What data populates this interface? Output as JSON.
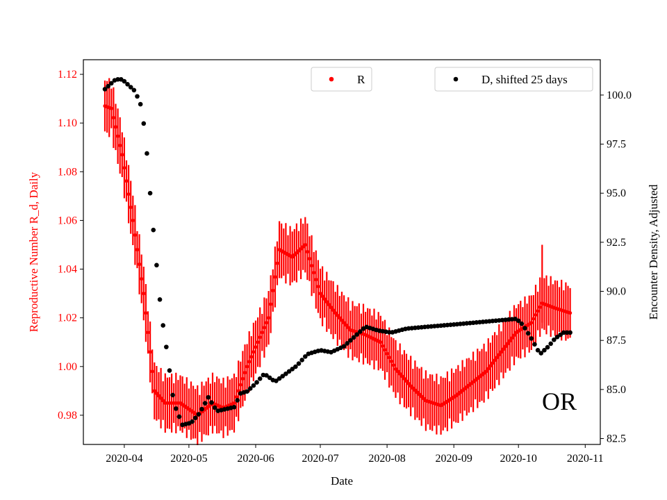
{
  "chart_data": {
    "type": "scatter",
    "state_label": "OR",
    "xlabel": "Date",
    "x_ticks": [
      "2020-04",
      "2020-05",
      "2020-06",
      "2020-07",
      "2020-08",
      "2020-09",
      "2020-10",
      "2020-11"
    ],
    "left_axis": {
      "label": "Reproductive Number R_d, Daily",
      "color": "#ff0000",
      "ylim": [
        0.968,
        1.126
      ],
      "ticks": [
        0.98,
        1.0,
        1.02,
        1.04,
        1.06,
        1.08,
        1.1,
        1.12
      ],
      "tick_labels": [
        "0.98",
        "1.00",
        "1.02",
        "1.04",
        "1.06",
        "1.08",
        "1.10",
        "1.12"
      ]
    },
    "right_axis": {
      "label": "Encounter Density, Adjusted",
      "color": "#000000",
      "ylim": [
        82.2,
        101.8
      ],
      "ticks": [
        82.5,
        85.0,
        87.5,
        90.0,
        92.5,
        95.0,
        97.5,
        100.0
      ],
      "tick_labels": [
        "82.5",
        "85.0",
        "87.5",
        "90.0",
        "92.5",
        "95.0",
        "97.5",
        "100.0"
      ]
    },
    "xlim": [
      "2020-03-13",
      "2020-11-08"
    ],
    "legend": [
      {
        "name": "R",
        "color": "#ff0000",
        "position": "top-center"
      },
      {
        "name": "D, shifted 25 days",
        "color": "#000000",
        "position": "top-right"
      }
    ],
    "series": [
      {
        "name": "R",
        "axis": "left",
        "color": "#ff0000",
        "band_width": 0.02,
        "points": [
          [
            "2020-03-23",
            1.107
          ],
          [
            "2020-03-26",
            1.106
          ],
          [
            "2020-03-31",
            1.087
          ],
          [
            "2020-04-05",
            1.06
          ],
          [
            "2020-04-10",
            1.03
          ],
          [
            "2020-04-15",
            0.99
          ],
          [
            "2020-04-20",
            0.985
          ],
          [
            "2020-04-27",
            0.985
          ],
          [
            "2020-05-05",
            0.98
          ],
          [
            "2020-05-12",
            0.985
          ],
          [
            "2020-05-17",
            0.983
          ],
          [
            "2020-05-22",
            0.985
          ],
          [
            "2020-05-28",
            1.0
          ],
          [
            "2020-06-02",
            1.01
          ],
          [
            "2020-06-07",
            1.02
          ],
          [
            "2020-06-12",
            1.048
          ],
          [
            "2020-06-18",
            1.045
          ],
          [
            "2020-06-24",
            1.05
          ],
          [
            "2020-07-01",
            1.03
          ],
          [
            "2020-07-08",
            1.022
          ],
          [
            "2020-07-15",
            1.015
          ],
          [
            "2020-07-22",
            1.013
          ],
          [
            "2020-07-29",
            1.01
          ],
          [
            "2020-08-05",
            0.999
          ],
          [
            "2020-08-12",
            0.992
          ],
          [
            "2020-08-19",
            0.986
          ],
          [
            "2020-08-26",
            0.984
          ],
          [
            "2020-09-02",
            0.988
          ],
          [
            "2020-09-09",
            0.993
          ],
          [
            "2020-09-16",
            0.998
          ],
          [
            "2020-09-23",
            1.006
          ],
          [
            "2020-09-30",
            1.014
          ],
          [
            "2020-10-07",
            1.018
          ],
          [
            "2020-10-12",
            1.026
          ],
          [
            "2020-10-18",
            1.024
          ],
          [
            "2020-10-25",
            1.022
          ]
        ]
      },
      {
        "name": "D, shifted 25 days",
        "axis": "right",
        "color": "#000000",
        "points": [
          [
            "2020-03-23",
            100.3
          ],
          [
            "2020-03-25",
            100.5
          ],
          [
            "2020-03-28",
            100.8
          ],
          [
            "2020-03-31",
            100.8
          ],
          [
            "2020-04-03",
            100.5
          ],
          [
            "2020-04-06",
            100.2
          ],
          [
            "2020-04-09",
            99.4
          ],
          [
            "2020-04-11",
            97.7
          ],
          [
            "2020-04-13",
            95.0
          ],
          [
            "2020-04-15",
            92.5
          ],
          [
            "2020-04-18",
            89.0
          ],
          [
            "2020-04-21",
            86.8
          ],
          [
            "2020-04-24",
            84.3
          ],
          [
            "2020-04-28",
            83.2
          ],
          [
            "2020-05-02",
            83.3
          ],
          [
            "2020-05-06",
            83.8
          ],
          [
            "2020-05-10",
            84.6
          ],
          [
            "2020-05-14",
            83.9
          ],
          [
            "2020-05-18",
            84.0
          ],
          [
            "2020-05-22",
            84.1
          ],
          [
            "2020-05-25",
            84.8
          ],
          [
            "2020-05-28",
            84.9
          ],
          [
            "2020-06-01",
            85.3
          ],
          [
            "2020-06-05",
            85.8
          ],
          [
            "2020-06-10",
            85.4
          ],
          [
            "2020-06-15",
            85.8
          ],
          [
            "2020-06-20",
            86.2
          ],
          [
            "2020-06-25",
            86.8
          ],
          [
            "2020-07-01",
            87.0
          ],
          [
            "2020-07-06",
            86.9
          ],
          [
            "2020-07-12",
            87.2
          ],
          [
            "2020-07-18",
            87.8
          ],
          [
            "2020-07-22",
            88.2
          ],
          [
            "2020-07-28",
            88.0
          ],
          [
            "2020-08-03",
            87.9
          ],
          [
            "2020-08-10",
            88.1
          ],
          [
            "2020-08-20",
            88.2
          ],
          [
            "2020-08-31",
            88.3
          ],
          [
            "2020-09-10",
            88.4
          ],
          [
            "2020-09-20",
            88.5
          ],
          [
            "2020-09-30",
            88.6
          ],
          [
            "2020-10-03",
            88.3
          ],
          [
            "2020-10-07",
            87.6
          ],
          [
            "2020-10-11",
            86.8
          ],
          [
            "2020-10-15",
            87.2
          ],
          [
            "2020-10-18",
            87.6
          ],
          [
            "2020-10-22",
            87.9
          ],
          [
            "2020-10-25",
            87.9
          ]
        ]
      }
    ]
  }
}
